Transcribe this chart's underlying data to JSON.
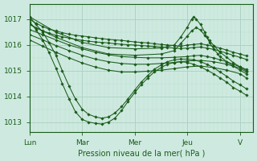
{
  "bg_color": "#ceeae0",
  "line_color": "#1a5c1a",
  "grid_color_major": "#aacfbf",
  "grid_color_minor": "#bcddd0",
  "ylabel_values": [
    1013,
    1014,
    1015,
    1016,
    1017
  ],
  "xlabel": "Pression niveau de la mer( hPa )",
  "xlabel_color": "#1a5c1a",
  "xlim": [
    0,
    4.25
  ],
  "ylim": [
    1012.6,
    1017.6
  ],
  "x_ticks": [
    0,
    1,
    2,
    3,
    4
  ],
  "x_tick_labels": [
    "Lun",
    "Mar",
    "Mer",
    "Jeu",
    "V"
  ],
  "lines": [
    {
      "x": [
        0.0,
        0.12,
        0.25,
        0.37,
        0.5,
        0.62,
        0.75,
        0.87,
        1.0,
        1.12,
        1.25,
        1.37,
        1.5,
        1.62,
        1.75,
        1.87,
        2.0,
        2.12,
        2.25,
        2.37,
        2.5,
        2.62,
        2.75,
        2.87,
        3.0,
        3.12,
        3.25,
        3.37,
        3.5,
        3.62,
        3.75,
        3.87,
        4.0,
        4.12
      ],
      "y": [
        1017.0,
        1016.85,
        1016.72,
        1016.62,
        1016.55,
        1016.48,
        1016.42,
        1016.38,
        1016.35,
        1016.32,
        1016.28,
        1016.25,
        1016.22,
        1016.2,
        1016.18,
        1016.15,
        1016.12,
        1016.1,
        1016.08,
        1016.05,
        1016.02,
        1016.0,
        1015.98,
        1015.95,
        1016.0,
        1016.02,
        1016.05,
        1016.0,
        1015.95,
        1015.88,
        1015.8,
        1015.72,
        1015.65,
        1015.58
      ]
    },
    {
      "x": [
        0.0,
        0.12,
        0.25,
        0.37,
        0.5,
        0.62,
        0.75,
        0.87,
        1.0,
        1.12,
        1.25,
        1.37,
        1.5,
        1.62,
        1.75,
        1.87,
        2.0,
        2.12,
        2.25,
        2.37,
        2.5,
        2.62,
        2.75,
        2.87,
        3.0,
        3.12,
        3.25,
        3.37,
        3.5,
        3.62,
        3.75,
        3.87,
        4.0,
        4.12
      ],
      "y": [
        1016.8,
        1016.67,
        1016.55,
        1016.46,
        1016.38,
        1016.32,
        1016.27,
        1016.22,
        1016.18,
        1016.15,
        1016.12,
        1016.1,
        1016.08,
        1016.05,
        1016.03,
        1016.01,
        1016.0,
        1015.98,
        1015.96,
        1015.94,
        1015.92,
        1015.9,
        1015.88,
        1015.86,
        1015.88,
        1015.9,
        1015.92,
        1015.88,
        1015.83,
        1015.76,
        1015.68,
        1015.6,
        1015.52,
        1015.44
      ]
    },
    {
      "x": [
        0.0,
        0.25,
        0.5,
        0.75,
        1.0,
        1.25,
        1.5,
        1.75,
        2.0,
        2.25,
        2.5,
        2.75,
        3.0,
        3.12,
        3.25,
        3.37,
        3.5,
        3.62,
        3.75,
        3.87,
        4.0,
        4.12
      ],
      "y": [
        1016.6,
        1016.4,
        1016.2,
        1016.0,
        1015.85,
        1015.72,
        1015.62,
        1015.55,
        1015.52,
        1015.5,
        1015.5,
        1015.52,
        1015.55,
        1015.58,
        1015.6,
        1015.55,
        1015.5,
        1015.42,
        1015.35,
        1015.25,
        1015.15,
        1015.05
      ]
    },
    {
      "x": [
        0.0,
        0.25,
        0.5,
        0.75,
        1.0,
        1.25,
        1.5,
        1.75,
        2.0,
        2.25,
        2.5,
        2.75,
        3.0,
        3.25,
        3.5,
        3.75,
        4.0,
        4.12
      ],
      "y": [
        1016.4,
        1016.2,
        1015.98,
        1015.78,
        1015.6,
        1015.45,
        1015.35,
        1015.28,
        1015.25,
        1015.25,
        1015.28,
        1015.32,
        1015.38,
        1015.4,
        1015.35,
        1015.25,
        1015.1,
        1014.95
      ]
    },
    {
      "x": [
        0.0,
        0.25,
        0.5,
        0.75,
        1.0,
        1.25,
        1.5,
        1.75,
        2.0,
        2.25,
        2.5,
        2.75,
        3.0,
        3.25,
        3.5,
        3.75,
        4.0,
        4.12
      ],
      "y": [
        1016.2,
        1015.95,
        1015.72,
        1015.5,
        1015.3,
        1015.14,
        1015.02,
        1014.95,
        1014.95,
        1014.98,
        1015.02,
        1015.08,
        1015.15,
        1015.18,
        1015.12,
        1015.02,
        1014.88,
        1014.72
      ]
    },
    {
      "x": [
        0.0,
        0.12,
        0.25,
        0.37,
        0.5,
        0.62,
        0.75,
        0.87,
        1.0,
        1.12,
        1.25,
        1.37,
        1.5,
        1.62,
        1.75,
        1.87,
        2.0,
        2.12,
        2.25,
        2.37,
        2.5,
        2.62,
        2.75,
        2.87,
        3.0,
        3.12,
        3.25,
        3.37,
        3.5,
        3.62,
        3.75,
        3.87,
        4.0,
        4.12
      ],
      "y": [
        1017.1,
        1016.8,
        1016.5,
        1016.1,
        1015.6,
        1015.0,
        1014.4,
        1013.9,
        1013.5,
        1013.3,
        1013.2,
        1013.15,
        1013.2,
        1013.35,
        1013.6,
        1013.9,
        1014.25,
        1014.55,
        1014.82,
        1015.05,
        1015.22,
        1015.35,
        1015.42,
        1015.45,
        1015.45,
        1015.42,
        1015.35,
        1015.25,
        1015.12,
        1014.95,
        1014.78,
        1014.6,
        1014.45,
        1014.3
      ]
    },
    {
      "x": [
        0.0,
        0.12,
        0.25,
        0.37,
        0.5,
        0.62,
        0.75,
        0.87,
        1.0,
        1.12,
        1.25,
        1.37,
        1.5,
        1.62,
        1.75,
        1.87,
        2.0,
        2.12,
        2.25,
        2.37,
        2.5,
        2.62,
        2.75,
        2.87,
        3.0,
        3.12,
        3.25,
        3.37,
        3.5,
        3.62,
        3.75,
        3.87,
        4.0,
        4.12
      ],
      "y": [
        1016.9,
        1016.6,
        1016.2,
        1015.7,
        1015.1,
        1014.5,
        1013.9,
        1013.4,
        1013.1,
        1013.0,
        1012.95,
        1012.92,
        1013.0,
        1013.15,
        1013.45,
        1013.8,
        1014.15,
        1014.45,
        1014.72,
        1014.95,
        1015.12,
        1015.25,
        1015.32,
        1015.35,
        1015.32,
        1015.25,
        1015.15,
        1015.02,
        1014.88,
        1014.72,
        1014.55,
        1014.35,
        1014.2,
        1014.05
      ]
    },
    {
      "x": [
        0.0,
        0.5,
        1.0,
        1.5,
        2.0,
        2.5,
        2.75,
        2.87,
        3.0,
        3.08,
        3.12,
        3.17,
        3.25,
        3.33,
        3.37,
        3.42,
        3.5,
        3.58,
        3.62,
        3.75,
        3.87,
        4.0,
        4.12
      ],
      "y": [
        1017.1,
        1016.5,
        1016.1,
        1015.9,
        1015.85,
        1015.88,
        1016.0,
        1016.3,
        1016.7,
        1017.0,
        1017.1,
        1017.0,
        1016.8,
        1016.5,
        1016.3,
        1016.1,
        1015.85,
        1015.65,
        1015.55,
        1015.35,
        1015.18,
        1015.02,
        1014.88
      ]
    },
    {
      "x": [
        0.0,
        0.5,
        1.0,
        1.5,
        2.0,
        2.5,
        2.75,
        2.87,
        3.0,
        3.08,
        3.17,
        3.25,
        3.33,
        3.42,
        3.5,
        3.62,
        3.75,
        3.87,
        4.0,
        4.12
      ],
      "y": [
        1016.8,
        1016.3,
        1015.9,
        1015.65,
        1015.6,
        1015.65,
        1015.78,
        1016.05,
        1016.35,
        1016.55,
        1016.68,
        1016.58,
        1016.38,
        1016.18,
        1015.98,
        1015.72,
        1015.52,
        1015.32,
        1015.15,
        1015.0
      ]
    }
  ]
}
